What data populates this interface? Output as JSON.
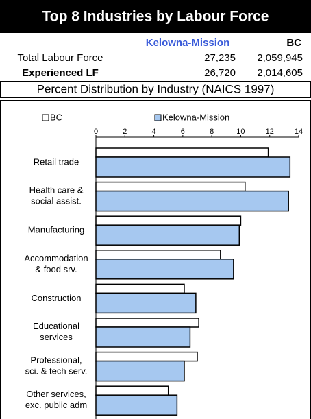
{
  "header": {
    "title": "Top 8 Industries by Labour Force",
    "columns": [
      "Kelowna-Mission",
      "BC"
    ],
    "rows": [
      [
        "Total Labour Force",
        "27,235",
        "2,059,945"
      ],
      [
        "Experienced LF",
        "26,720",
        "2,014,605"
      ]
    ],
    "subtitle": "Percent Distribution by Industry (NAICS 1997)"
  },
  "chart_data": {
    "type": "bar",
    "orientation": "horizontal",
    "categories": [
      "Retail trade",
      "Health care &\nsocial assist.",
      "Manufacturing",
      "Accommodation\n& food srv.",
      "Construction",
      "Educational\nservices",
      "Professional,\nsci. & tech serv.",
      "Other services,\nexc. public adm"
    ],
    "series": [
      {
        "name": "BC",
        "color": "#ffffff",
        "values": [
          11.9,
          10.3,
          10.0,
          8.6,
          6.1,
          7.1,
          7.0,
          5.0
        ]
      },
      {
        "name": "Kelowna-Mission",
        "color": "#a6c8f0",
        "values": [
          13.4,
          13.3,
          9.9,
          9.5,
          6.9,
          6.5,
          6.1,
          5.6
        ]
      }
    ],
    "xlim": [
      0,
      14
    ],
    "xticks": [
      0,
      2,
      4,
      6,
      8,
      10,
      12,
      14
    ],
    "legend": "top"
  }
}
